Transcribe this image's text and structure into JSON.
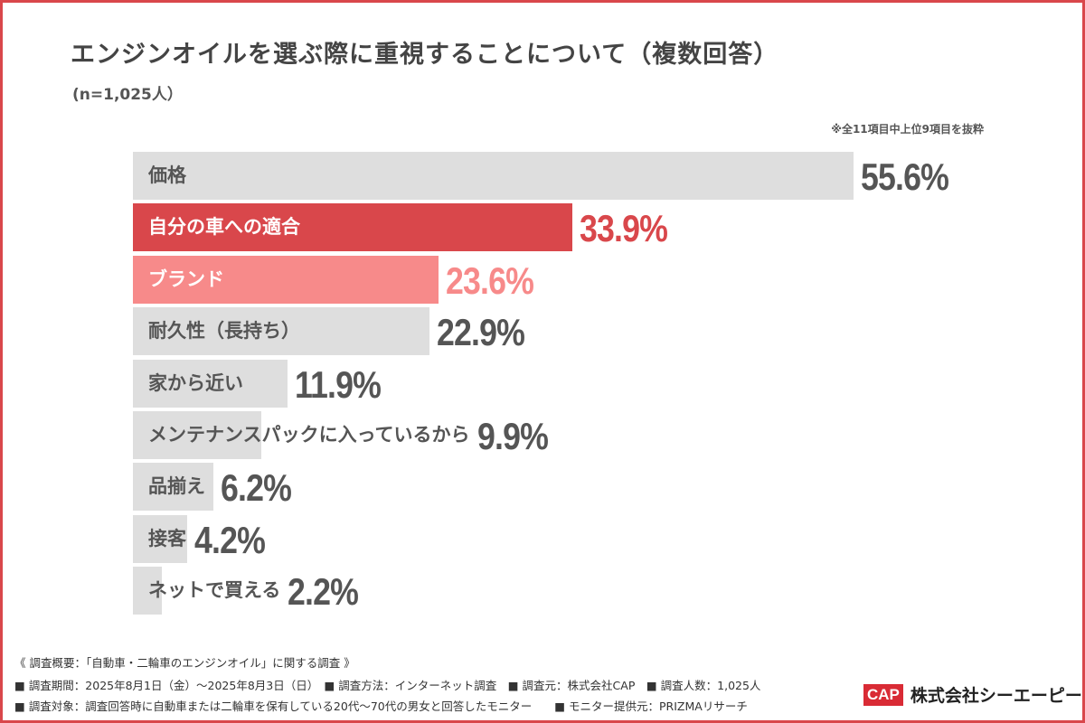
{
  "chart_data": {
    "type": "bar",
    "orientation": "horizontal",
    "title": "エンジンオイルを選ぶ際に重視することについて（複数回答）",
    "subtitle": "(n=1,025人）",
    "note": "※全11項目中上位9項目を抜粋",
    "categories": [
      "価格",
      "自分の車への適合",
      "ブランド",
      "耐久性（長持ち）",
      "家から近い",
      "メンテナンスパックに入っているから",
      "品揃え",
      "接客",
      "ネットで買える"
    ],
    "values": [
      55.6,
      33.9,
      23.6,
      22.9,
      11.9,
      9.9,
      6.2,
      4.2,
      2.2
    ],
    "value_labels": [
      "55.6%",
      "33.9%",
      "23.6%",
      "22.9%",
      "11.9%",
      "9.9%",
      "6.2%",
      "4.2%",
      "2.2%"
    ],
    "unit": "%",
    "xlim": [
      0,
      55.6
    ],
    "grid": false,
    "colors": {
      "default": "#dedede",
      "highlight_1": "#d9474b",
      "highlight_2": "#f78a8a",
      "border": "#d9474b"
    },
    "highlight": {
      "1": "highlight_1",
      "2": "highlight_2"
    }
  },
  "footer": {
    "heading": "《 調査概要：「自動車・二輪車のエンジンオイル」に関する調査 》",
    "line1": "■ 調査期間：2025年8月1日（金）〜2025年8月3日（日）　■ 調査方法：インターネット調査　■ 調査元：株式会社CAP　■ 調査人数：1,025人",
    "line2": "■ 調査対象：調査回答時に自動車または二輪車を保有している20代〜70代の男女と回答したモニター　　■ モニター提供元：PRIZMAリサーチ"
  },
  "logo": {
    "mark": "CAP",
    "name": "株式会社シーエーピー"
  }
}
